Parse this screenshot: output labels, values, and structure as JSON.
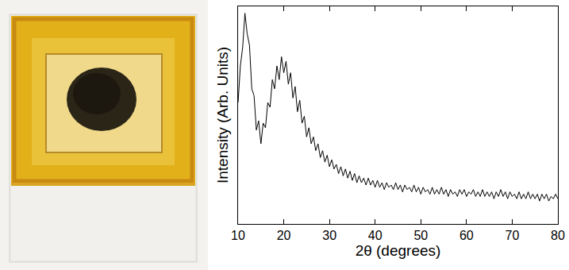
{
  "chart_data": {
    "type": "line",
    "x_label": "2θ (degrees)",
    "y_label": "Intensity (Arb. Units)",
    "color": "#000000",
    "xlim": [
      10,
      80
    ],
    "xticks": [
      10,
      20,
      30,
      40,
      50,
      60,
      70,
      80
    ],
    "ylim": [
      5,
      100
    ],
    "yticks": [],
    "tick_labels": "x",
    "grid": false,
    "x": [
      10,
      10.5,
      11,
      11.5,
      12,
      12.5,
      13,
      13.5,
      14,
      14.5,
      15,
      15.5,
      16,
      16.5,
      17,
      17.5,
      18,
      18.5,
      19,
      19.5,
      20,
      20.5,
      21,
      21.5,
      22,
      22.5,
      23,
      23.5,
      24,
      24.5,
      25,
      25.5,
      26,
      26.5,
      27,
      27.5,
      28,
      28.5,
      29,
      29.5,
      30,
      30.5,
      31,
      31.5,
      32,
      32.5,
      33,
      33.5,
      34,
      34.5,
      35,
      35.5,
      36,
      36.5,
      37,
      37.5,
      38,
      38.5,
      39,
      39.5,
      40,
      40.5,
      41,
      41.5,
      42,
      42.5,
      43,
      43.5,
      44,
      44.5,
      45,
      45.5,
      46,
      46.5,
      47,
      47.5,
      48,
      48.5,
      49,
      49.5,
      50,
      50.5,
      51,
      51.5,
      52,
      52.5,
      53,
      53.5,
      54,
      54.5,
      55,
      55.5,
      56,
      56.5,
      57,
      57.5,
      58,
      58.5,
      59,
      59.5,
      60,
      60.5,
      61,
      61.5,
      62,
      62.5,
      63,
      63.5,
      64,
      64.5,
      65,
      65.5,
      66,
      66.5,
      67,
      67.5,
      68,
      68.5,
      69,
      69.5,
      70,
      70.5,
      71,
      71.5,
      72,
      72.5,
      73,
      73.5,
      74,
      74.5,
      75,
      75.5,
      76,
      76.5,
      77,
      77.5,
      78,
      78.5,
      79,
      79.5,
      80
    ],
    "values": [
      58,
      74,
      82,
      97,
      88,
      83,
      64,
      61,
      46,
      50,
      40,
      49,
      47,
      58,
      56,
      68,
      64,
      74,
      68,
      78,
      71,
      76,
      66,
      71,
      60,
      65,
      54,
      59,
      49,
      52,
      43,
      47,
      40,
      43,
      37,
      40,
      34,
      37,
      32,
      35,
      30,
      33,
      29,
      31,
      27,
      30,
      26,
      29,
      25,
      28,
      24,
      27,
      23,
      26,
      23,
      25,
      22,
      25,
      22,
      24,
      21,
      24,
      21,
      23,
      20,
      23,
      21,
      22,
      20,
      23,
      20,
      22,
      19,
      22,
      20,
      21,
      19,
      22,
      19,
      21,
      18,
      21,
      19,
      20,
      18,
      21,
      18,
      20,
      18,
      21,
      18,
      20,
      17,
      20,
      18,
      19,
      17,
      20,
      18,
      20,
      17,
      19,
      18,
      20,
      17,
      19,
      17,
      20,
      17,
      19,
      17,
      19,
      16,
      19,
      17,
      20,
      17,
      19,
      16,
      19,
      17,
      18,
      16,
      19,
      16,
      18,
      16,
      19,
      16,
      18,
      16,
      18,
      15,
      18,
      16,
      18,
      15,
      17,
      16,
      18,
      16
    ]
  }
}
